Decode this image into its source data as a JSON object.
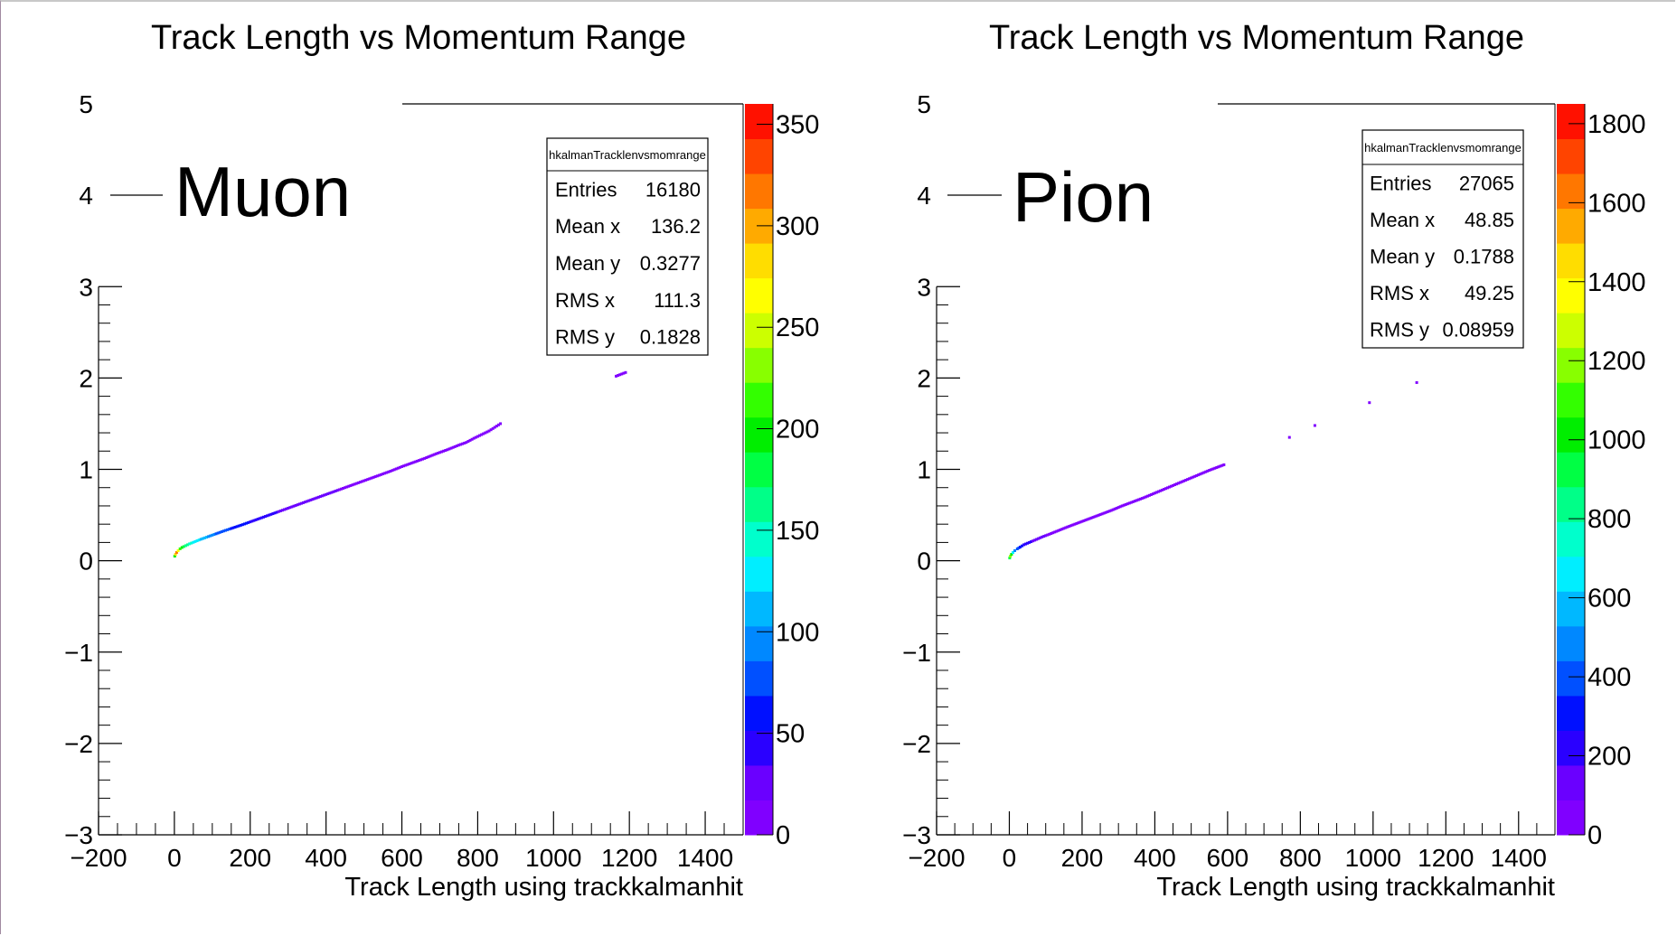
{
  "chart_data": [
    {
      "type": "heatmap",
      "title": "Track Length vs Momentum Range",
      "xlabel": "Track Length using trackkalmanhit",
      "ylabel": "",
      "xlim": [
        -200,
        1500
      ],
      "ylim": [
        -3,
        5
      ],
      "x_ticks": [
        "−200",
        "0",
        "200",
        "400",
        "600",
        "800",
        "1000",
        "1200",
        "1400"
      ],
      "y_ticks": [
        "−3",
        "−2",
        "−1",
        "0",
        "1",
        "2",
        "3",
        "4",
        "5"
      ],
      "annotation": "Muon",
      "z_ticks": [
        "0",
        "50",
        "100",
        "150",
        "200",
        "250",
        "300",
        "350"
      ],
      "zlim": [
        0,
        360
      ],
      "stats": {
        "name": "hkalmanTracklenvsmomrange",
        "rows": [
          {
            "label": "Entries",
            "value": "16180"
          },
          {
            "label": "Mean x",
            "value": "136.2"
          },
          {
            "label": "Mean y",
            "value": "0.3277"
          },
          {
            "label": "RMS x",
            "value": "111.3"
          },
          {
            "label": "RMS y",
            "value": "0.1828"
          }
        ]
      },
      "points": [
        [
          1,
          0.05,
          200
        ],
        [
          3,
          0.07,
          280
        ],
        [
          6,
          0.09,
          320
        ],
        [
          10,
          0.11,
          260
        ],
        [
          15,
          0.13,
          220
        ],
        [
          20,
          0.145,
          200
        ],
        [
          30,
          0.165,
          170
        ],
        [
          40,
          0.185,
          150
        ],
        [
          55,
          0.21,
          130
        ],
        [
          70,
          0.235,
          115
        ],
        [
          90,
          0.265,
          100
        ],
        [
          110,
          0.295,
          85
        ],
        [
          130,
          0.325,
          75
        ],
        [
          155,
          0.36,
          65
        ],
        [
          180,
          0.395,
          55
        ],
        [
          210,
          0.44,
          48
        ],
        [
          240,
          0.485,
          40
        ],
        [
          270,
          0.53,
          35
        ],
        [
          300,
          0.575,
          30
        ],
        [
          330,
          0.62,
          26
        ],
        [
          360,
          0.665,
          22
        ],
        [
          390,
          0.71,
          20
        ],
        [
          420,
          0.755,
          18
        ],
        [
          450,
          0.8,
          16
        ],
        [
          480,
          0.845,
          14
        ],
        [
          510,
          0.89,
          12
        ],
        [
          540,
          0.935,
          11
        ],
        [
          570,
          0.98,
          10
        ],
        [
          600,
          1.03,
          9
        ],
        [
          630,
          1.075,
          8
        ],
        [
          660,
          1.12,
          7
        ],
        [
          690,
          1.17,
          6
        ],
        [
          720,
          1.215,
          5
        ],
        [
          750,
          1.265,
          4
        ],
        [
          770,
          1.295,
          3
        ],
        [
          790,
          1.34,
          2
        ],
        [
          830,
          1.42,
          1
        ],
        [
          860,
          1.5,
          1
        ],
        [
          1165,
          2.02,
          1
        ],
        [
          1190,
          2.06,
          1
        ]
      ]
    },
    {
      "type": "heatmap",
      "title": "Track Length vs Momentum Range",
      "xlabel": "Track Length using trackkalmanhit",
      "ylabel": "",
      "xlim": [
        -200,
        1500
      ],
      "ylim": [
        -3,
        5
      ],
      "x_ticks": [
        "−200",
        "0",
        "200",
        "400",
        "600",
        "800",
        "1000",
        "1200",
        "1400"
      ],
      "y_ticks": [
        "−3",
        "−2",
        "−1",
        "0",
        "1",
        "2",
        "3",
        "4",
        "5"
      ],
      "annotation": "Pion",
      "z_ticks": [
        "0",
        "200",
        "400",
        "600",
        "800",
        "1000",
        "1200",
        "1400",
        "1600",
        "1800"
      ],
      "zlim": [
        0,
        1850
      ],
      "stats": {
        "name": "hkalmanTracklenvsmomrange",
        "rows": [
          {
            "label": "Entries",
            "value": "27065"
          },
          {
            "label": "Mean x",
            "value": "48.85"
          },
          {
            "label": "Mean y",
            "value": "0.1788"
          },
          {
            "label": "RMS x",
            "value": "49.25"
          },
          {
            "label": "RMS y",
            "value": "0.08959"
          }
        ]
      },
      "points": [
        [
          1,
          0.03,
          900
        ],
        [
          3,
          0.05,
          1200
        ],
        [
          6,
          0.07,
          1000
        ],
        [
          10,
          0.09,
          700
        ],
        [
          15,
          0.11,
          500
        ],
        [
          22,
          0.13,
          400
        ],
        [
          30,
          0.15,
          320
        ],
        [
          40,
          0.175,
          260
        ],
        [
          55,
          0.2,
          200
        ],
        [
          70,
          0.225,
          150
        ],
        [
          90,
          0.26,
          110
        ],
        [
          110,
          0.29,
          80
        ],
        [
          135,
          0.33,
          60
        ],
        [
          160,
          0.37,
          45
        ],
        [
          190,
          0.415,
          35
        ],
        [
          220,
          0.46,
          28
        ],
        [
          250,
          0.505,
          22
        ],
        [
          280,
          0.55,
          18
        ],
        [
          310,
          0.6,
          14
        ],
        [
          340,
          0.645,
          10
        ],
        [
          370,
          0.69,
          8
        ],
        [
          400,
          0.74,
          6
        ],
        [
          430,
          0.79,
          5
        ],
        [
          460,
          0.84,
          4
        ],
        [
          490,
          0.89,
          3
        ],
        [
          520,
          0.94,
          2
        ],
        [
          550,
          0.99,
          1
        ],
        [
          590,
          1.05,
          1
        ],
        [
          770,
          1.35,
          1
        ],
        [
          840,
          1.48,
          1
        ],
        [
          990,
          1.73,
          1
        ],
        [
          1120,
          1.95,
          1
        ]
      ]
    }
  ]
}
